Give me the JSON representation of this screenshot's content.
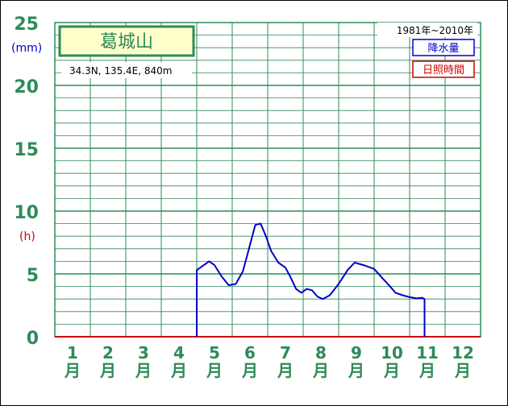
{
  "chart_data": {
    "type": "line",
    "title": "葛城山",
    "location": "34.3N,  135.4E,  840m",
    "period": "1981年~2010年",
    "y_unit_left": "(mm)",
    "y_unit_h": "(h)",
    "ylim": [
      0,
      25
    ],
    "yticks": [
      "0",
      "5",
      "10",
      "15",
      "20",
      "25"
    ],
    "month_numbers": [
      "1",
      "2",
      "3",
      "4",
      "5",
      "6",
      "7",
      "8",
      "9",
      "10",
      "11",
      "12"
    ],
    "month_suffix": "月",
    "legend": [
      {
        "name": "降水量",
        "color": "#0000cc"
      },
      {
        "name": "日照時間",
        "color": "#cc0000"
      }
    ],
    "series": [
      {
        "name": "降水量",
        "color": "#0000cc",
        "points": [
          [
            4.5,
            0
          ],
          [
            4.5,
            5.3
          ],
          [
            4.7,
            5.7
          ],
          [
            4.85,
            6.0
          ],
          [
            5.0,
            5.7
          ],
          [
            5.2,
            4.8
          ],
          [
            5.4,
            4.1
          ],
          [
            5.6,
            4.2
          ],
          [
            5.8,
            5.2
          ],
          [
            6.0,
            7.3
          ],
          [
            6.15,
            8.9
          ],
          [
            6.3,
            9.0
          ],
          [
            6.45,
            8.0
          ],
          [
            6.6,
            6.8
          ],
          [
            6.8,
            5.9
          ],
          [
            7.0,
            5.5
          ],
          [
            7.15,
            4.7
          ],
          [
            7.3,
            3.8
          ],
          [
            7.45,
            3.5
          ],
          [
            7.6,
            3.8
          ],
          [
            7.75,
            3.7
          ],
          [
            7.9,
            3.2
          ],
          [
            8.05,
            3.0
          ],
          [
            8.25,
            3.3
          ],
          [
            8.5,
            4.2
          ],
          [
            8.75,
            5.3
          ],
          [
            8.95,
            5.9
          ],
          [
            9.2,
            5.7
          ],
          [
            9.5,
            5.4
          ],
          [
            9.75,
            4.6
          ],
          [
            9.95,
            4.0
          ],
          [
            10.1,
            3.5
          ],
          [
            10.3,
            3.3
          ],
          [
            10.5,
            3.15
          ],
          [
            10.7,
            3.05
          ],
          [
            10.85,
            3.1
          ],
          [
            10.92,
            3.0
          ],
          [
            10.92,
            0
          ]
        ]
      }
    ]
  }
}
